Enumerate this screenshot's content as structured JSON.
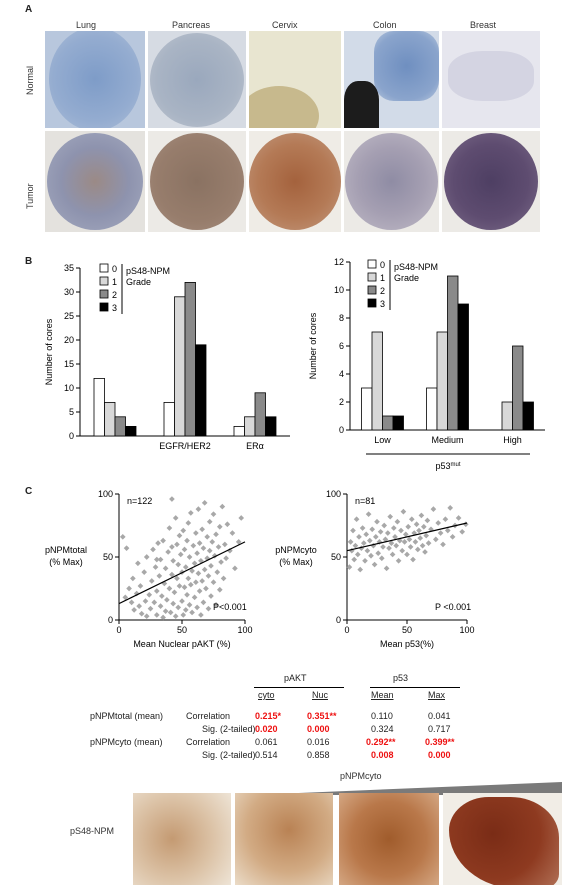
{
  "panel_a": {
    "label": "A",
    "tissues": [
      "Lung",
      "Pancreas",
      "Cervix",
      "Colon",
      "Breast"
    ],
    "rows": [
      "Normal",
      "Tumor"
    ]
  },
  "panel_b": {
    "label": "B",
    "legend_title": [
      "pS48-NPM",
      "Grade"
    ],
    "legend_entries": [
      "0",
      "1",
      "2",
      "3"
    ],
    "colors": [
      "#ffffff",
      "#d8d8d8",
      "#8a8a8a",
      "#000000"
    ]
  },
  "panel_c": {
    "label": "C",
    "table": {
      "col_groups": [
        "pAKT",
        "p53"
      ],
      "col_heads": [
        "cyto",
        "Nuc",
        "Mean",
        "Max"
      ],
      "rows": [
        {
          "row_label": "pNPMtotal  (mean)",
          "stat": "Correlation",
          "cells": [
            "0.215*",
            "0.351**",
            "0.110",
            "0.041"
          ],
          "bold": [
            true,
            true,
            false,
            false
          ]
        },
        {
          "row_label": "",
          "stat": "Sig. (2-tailed)",
          "cells": [
            "0.020",
            "0.000",
            "0.324",
            "0.717"
          ],
          "bold": [
            true,
            true,
            false,
            false
          ]
        },
        {
          "row_label": "pNPMcyto  (mean)",
          "stat": "Correlation",
          "cells": [
            "0.061",
            "0.016",
            "0.292**",
            "0.399**"
          ],
          "bold": [
            false,
            false,
            true,
            true
          ]
        },
        {
          "row_label": "",
          "stat": "Sig. (2-tailed)",
          "cells": [
            "0.514",
            "0.858",
            "0.008",
            "0.000"
          ],
          "bold": [
            false,
            false,
            true,
            true
          ]
        }
      ]
    },
    "bottom": {
      "gradient_label": "pNPMcyto",
      "row_label": "pS48-NPM"
    }
  },
  "chart_data": [
    {
      "type": "bar",
      "categories": [
        "",
        "EGFR/HER2",
        "ERα"
      ],
      "series": [
        {
          "name": "0",
          "values": [
            12,
            7,
            2
          ]
        },
        {
          "name": "1",
          "values": [
            7,
            29,
            4
          ]
        },
        {
          "name": "2",
          "values": [
            4,
            32,
            9
          ]
        },
        {
          "name": "3",
          "values": [
            2,
            19,
            4
          ]
        }
      ],
      "ylabel": "Number of cores",
      "ylim": [
        0,
        35
      ],
      "yticks": [
        0,
        5,
        10,
        15,
        20,
        25,
        30,
        35
      ]
    },
    {
      "type": "bar",
      "categories": [
        "Low",
        "Medium",
        "High"
      ],
      "series": [
        {
          "name": "0",
          "values": [
            3,
            3,
            0
          ]
        },
        {
          "name": "1",
          "values": [
            7,
            7,
            2
          ]
        },
        {
          "name": "2",
          "values": [
            1,
            11,
            6
          ]
        },
        {
          "name": "3",
          "values": [
            1,
            9,
            2
          ]
        }
      ],
      "ylabel": "Number of cores",
      "xlabel": "p53",
      "xlabel_sup": "mut",
      "ylim": [
        0,
        12
      ],
      "yticks": [
        0,
        2,
        4,
        6,
        8,
        10,
        12
      ]
    },
    {
      "type": "scatter",
      "n_label": "n=122",
      "p_label": "P<0.001",
      "xlabel": "Mean Nuclear pAKT (%)",
      "ylabel": [
        "pNPMtotal",
        "(% Max)"
      ],
      "xlim": [
        0,
        100
      ],
      "ylim": [
        0,
        100
      ],
      "xticks": [
        0,
        50,
        100
      ],
      "yticks": [
        0,
        50,
        100
      ],
      "trend": [
        [
          0,
          13
        ],
        [
          100,
          62
        ]
      ],
      "points": [
        [
          3,
          66
        ],
        [
          5,
          18
        ],
        [
          6,
          57
        ],
        [
          8,
          25
        ],
        [
          10,
          14
        ],
        [
          11,
          33
        ],
        [
          12,
          8
        ],
        [
          14,
          21
        ],
        [
          15,
          45
        ],
        [
          16,
          11
        ],
        [
          17,
          27
        ],
        [
          18,
          5
        ],
        [
          20,
          38
        ],
        [
          21,
          15
        ],
        [
          22,
          50
        ],
        [
          22,
          3
        ],
        [
          24,
          20
        ],
        [
          25,
          9
        ],
        [
          26,
          31
        ],
        [
          27,
          56
        ],
        [
          28,
          14
        ],
        [
          29,
          42
        ],
        [
          30,
          4
        ],
        [
          30,
          23
        ],
        [
          31,
          61
        ],
        [
          32,
          35
        ],
        [
          33,
          11
        ],
        [
          33,
          48
        ],
        [
          34,
          19
        ],
        [
          35,
          2
        ],
        [
          35,
          63
        ],
        [
          36,
          29
        ],
        [
          37,
          7
        ],
        [
          37,
          41
        ],
        [
          38,
          16
        ],
        [
          39,
          54
        ],
        [
          40,
          73
        ],
        [
          40,
          25
        ],
        [
          41,
          6
        ],
        [
          42,
          36
        ],
        [
          42,
          58
        ],
        [
          43,
          13
        ],
        [
          43,
          47
        ],
        [
          44,
          22
        ],
        [
          45,
          81
        ],
        [
          45,
          3
        ],
        [
          46,
          33
        ],
        [
          46,
          60
        ],
        [
          47,
          10
        ],
        [
          47,
          44
        ],
        [
          48,
          27
        ],
        [
          48,
          67
        ],
        [
          49,
          52
        ],
        [
          50,
          15
        ],
        [
          50,
          38
        ],
        [
          51,
          4
        ],
        [
          51,
          71
        ],
        [
          52,
          26
        ],
        [
          52,
          56
        ],
        [
          53,
          8
        ],
        [
          53,
          42
        ],
        [
          54,
          20
        ],
        [
          54,
          63
        ],
        [
          55,
          33
        ],
        [
          55,
          77
        ],
        [
          56,
          12
        ],
        [
          56,
          50
        ],
        [
          57,
          28
        ],
        [
          57,
          85
        ],
        [
          58,
          39
        ],
        [
          58,
          6
        ],
        [
          59,
          59
        ],
        [
          60,
          18
        ],
        [
          60,
          45
        ],
        [
          61,
          69
        ],
        [
          61,
          30
        ],
        [
          62,
          10
        ],
        [
          62,
          53
        ],
        [
          63,
          37
        ],
        [
          63,
          88
        ],
        [
          64,
          23
        ],
        [
          64,
          61
        ],
        [
          65,
          47
        ],
        [
          65,
          4
        ],
        [
          66,
          72
        ],
        [
          66,
          31
        ],
        [
          67,
          14
        ],
        [
          67,
          57
        ],
        [
          68,
          40
        ],
        [
          68,
          93
        ],
        [
          69,
          25
        ],
        [
          70,
          66
        ],
        [
          70,
          49
        ],
        [
          71,
          9
        ],
        [
          71,
          35
        ],
        [
          72,
          78
        ],
        [
          72,
          55
        ],
        [
          73,
          19
        ],
        [
          73,
          43
        ],
        [
          74,
          62
        ],
        [
          75,
          30
        ],
        [
          75,
          84
        ],
        [
          76,
          51
        ],
        [
          77,
          12
        ],
        [
          77,
          68
        ],
        [
          78,
          38
        ],
        [
          79,
          58
        ],
        [
          80,
          24
        ],
        [
          80,
          74
        ],
        [
          81,
          46
        ],
        [
          82,
          90
        ],
        [
          83,
          33
        ],
        [
          84,
          60
        ],
        [
          85,
          49
        ],
        [
          86,
          76
        ],
        [
          88,
          55
        ],
        [
          90,
          69
        ],
        [
          92,
          41
        ],
        [
          95,
          62
        ],
        [
          97,
          81
        ],
        [
          42,
          96
        ],
        [
          30,
          48
        ]
      ]
    },
    {
      "type": "scatter",
      "n_label": "n=81",
      "p_label": "P <0.001",
      "xlabel": "Mean p53(%)",
      "ylabel": [
        "pNPMcyto",
        "(% Max)"
      ],
      "xlim": [
        0,
        100
      ],
      "ylim": [
        0,
        100
      ],
      "xticks": [
        0,
        50,
        100
      ],
      "yticks": [
        0,
        50,
        100
      ],
      "trend": [
        [
          0,
          55
        ],
        [
          100,
          77
        ]
      ],
      "points": [
        [
          2,
          42
        ],
        [
          3,
          62
        ],
        [
          4,
          55
        ],
        [
          5,
          71
        ],
        [
          6,
          48
        ],
        [
          7,
          59
        ],
        [
          8,
          80
        ],
        [
          9,
          52
        ],
        [
          10,
          66
        ],
        [
          11,
          40
        ],
        [
          12,
          57
        ],
        [
          13,
          73
        ],
        [
          14,
          61
        ],
        [
          15,
          47
        ],
        [
          16,
          68
        ],
        [
          17,
          55
        ],
        [
          18,
          84
        ],
        [
          19,
          63
        ],
        [
          20,
          51
        ],
        [
          21,
          72
        ],
        [
          22,
          59
        ],
        [
          23,
          44
        ],
        [
          24,
          66
        ],
        [
          25,
          78
        ],
        [
          26,
          53
        ],
        [
          27,
          62
        ],
        [
          28,
          70
        ],
        [
          29,
          49
        ],
        [
          30,
          58
        ],
        [
          31,
          75
        ],
        [
          32,
          64
        ],
        [
          33,
          41
        ],
        [
          34,
          69
        ],
        [
          35,
          57
        ],
        [
          36,
          82
        ],
        [
          37,
          61
        ],
        [
          38,
          52
        ],
        [
          39,
          73
        ],
        [
          40,
          66
        ],
        [
          41,
          59
        ],
        [
          42,
          78
        ],
        [
          43,
          47
        ],
        [
          44,
          63
        ],
        [
          45,
          71
        ],
        [
          46,
          55
        ],
        [
          47,
          86
        ],
        [
          48,
          62
        ],
        [
          49,
          68
        ],
        [
          50,
          52
        ],
        [
          51,
          74
        ],
        [
          52,
          64
        ],
        [
          53,
          58
        ],
        [
          54,
          80
        ],
        [
          55,
          48
        ],
        [
          56,
          69
        ],
        [
          57,
          62
        ],
        [
          58,
          76
        ],
        [
          59,
          56
        ],
        [
          60,
          71
        ],
        [
          61,
          65
        ],
        [
          62,
          83
        ],
        [
          63,
          59
        ],
        [
          64,
          74
        ],
        [
          65,
          54
        ],
        [
          66,
          67
        ],
        [
          67,
          79
        ],
        [
          68,
          61
        ],
        [
          70,
          72
        ],
        [
          72,
          88
        ],
        [
          74,
          64
        ],
        [
          76,
          77
        ],
        [
          78,
          69
        ],
        [
          80,
          60
        ],
        [
          82,
          80
        ],
        [
          84,
          71
        ],
        [
          86,
          89
        ],
        [
          88,
          66
        ],
        [
          90,
          75
        ],
        [
          93,
          81
        ],
        [
          96,
          70
        ],
        [
          99,
          76
        ]
      ]
    }
  ]
}
